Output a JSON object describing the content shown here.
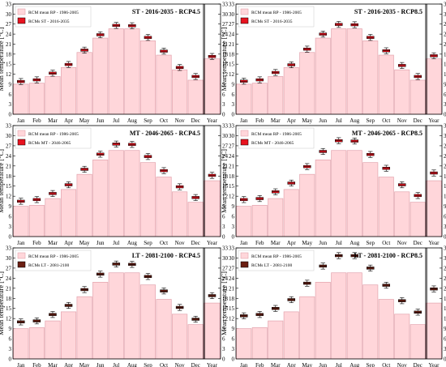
{
  "months": [
    "Jan",
    "Feb",
    "Mar",
    "Apr",
    "May",
    "Jun",
    "Jul",
    "Aug",
    "Sep",
    "Oct",
    "Nov",
    "Dec"
  ],
  "year_label": "Year",
  "ylabel": "Mean temperature [°C]",
  "ylim": [
    0,
    33
  ],
  "yticks": [
    0,
    3,
    6,
    9,
    12,
    15,
    18,
    21,
    24,
    27,
    30,
    33
  ],
  "baseline": {
    "legend": "RCM mean RP - 1986-2005",
    "monthly": [
      9.0,
      9.3,
      11.3,
      14.0,
      18.5,
      22.8,
      25.6,
      25.6,
      22.0,
      17.7,
      13.3,
      10.2
    ],
    "year": 16.6
  },
  "colors": {
    "bar_fill": "#ffd6da",
    "bar_stroke": "#e3a3ad",
    "box_red": "#e8131f",
    "box_brown": "#6b1f12"
  },
  "chart_data": [
    {
      "type": "box",
      "title": "ST - 2016-2035 - RCP4.5",
      "legend": "RCMs ST - 2016-2035",
      "marker_color": "red",
      "legend_pos": "top-left",
      "monthly": [
        9.8,
        10.3,
        12.3,
        14.9,
        19.2,
        23.8,
        26.6,
        26.5,
        23.0,
        18.9,
        14.0,
        11.3
      ],
      "year": 17.3
    },
    {
      "type": "box",
      "title": "ST - 2016-2035 - RCP8.5",
      "legend": "RCMs ST - 2016-2035",
      "marker_color": "red",
      "legend_pos": "top-left",
      "monthly": [
        9.9,
        10.3,
        12.5,
        14.8,
        19.5,
        24.0,
        26.9,
        26.8,
        23.0,
        19.0,
        14.6,
        11.3
      ],
      "year": 17.5
    },
    {
      "type": "box",
      "title": "MT - 2046-2065 - RCP4.5",
      "legend": "RCMs MT - 2046-2065",
      "marker_color": "red",
      "legend_pos": "top-left",
      "monthly": [
        10.5,
        11.0,
        12.8,
        15.4,
        20.0,
        24.5,
        27.5,
        27.4,
        23.8,
        19.6,
        14.8,
        11.6
      ],
      "year": 18.2
    },
    {
      "type": "box",
      "title": "MT - 2046-2065 - RCP8.5",
      "legend": "RCMs MT - 2046-2065",
      "marker_color": "red",
      "legend_pos": "top-left",
      "monthly": [
        11.0,
        11.3,
        13.3,
        15.9,
        20.8,
        25.3,
        28.5,
        28.4,
        24.4,
        20.3,
        15.4,
        12.2
      ],
      "year": 18.9
    },
    {
      "type": "box",
      "title": "LT - 2081-2100 - RCP4.5",
      "legend": "RCMs LT - 2081-2100",
      "marker_color": "brown",
      "legend_pos": "top-left",
      "monthly": [
        11.0,
        11.3,
        13.2,
        15.9,
        20.6,
        25.2,
        28.2,
        28.1,
        24.5,
        20.2,
        15.3,
        11.8
      ],
      "year": 18.8
    },
    {
      "type": "box",
      "title": "LT - 2081-2100 - RCP8.5",
      "legend": "RCMs LT - 2081-2100",
      "marker_color": "brown",
      "legend_pos": "top-left",
      "monthly": [
        12.8,
        13.2,
        15.0,
        17.6,
        22.5,
        27.6,
        30.7,
        30.7,
        27.0,
        21.9,
        17.3,
        13.9
      ],
      "year": 20.8
    }
  ]
}
